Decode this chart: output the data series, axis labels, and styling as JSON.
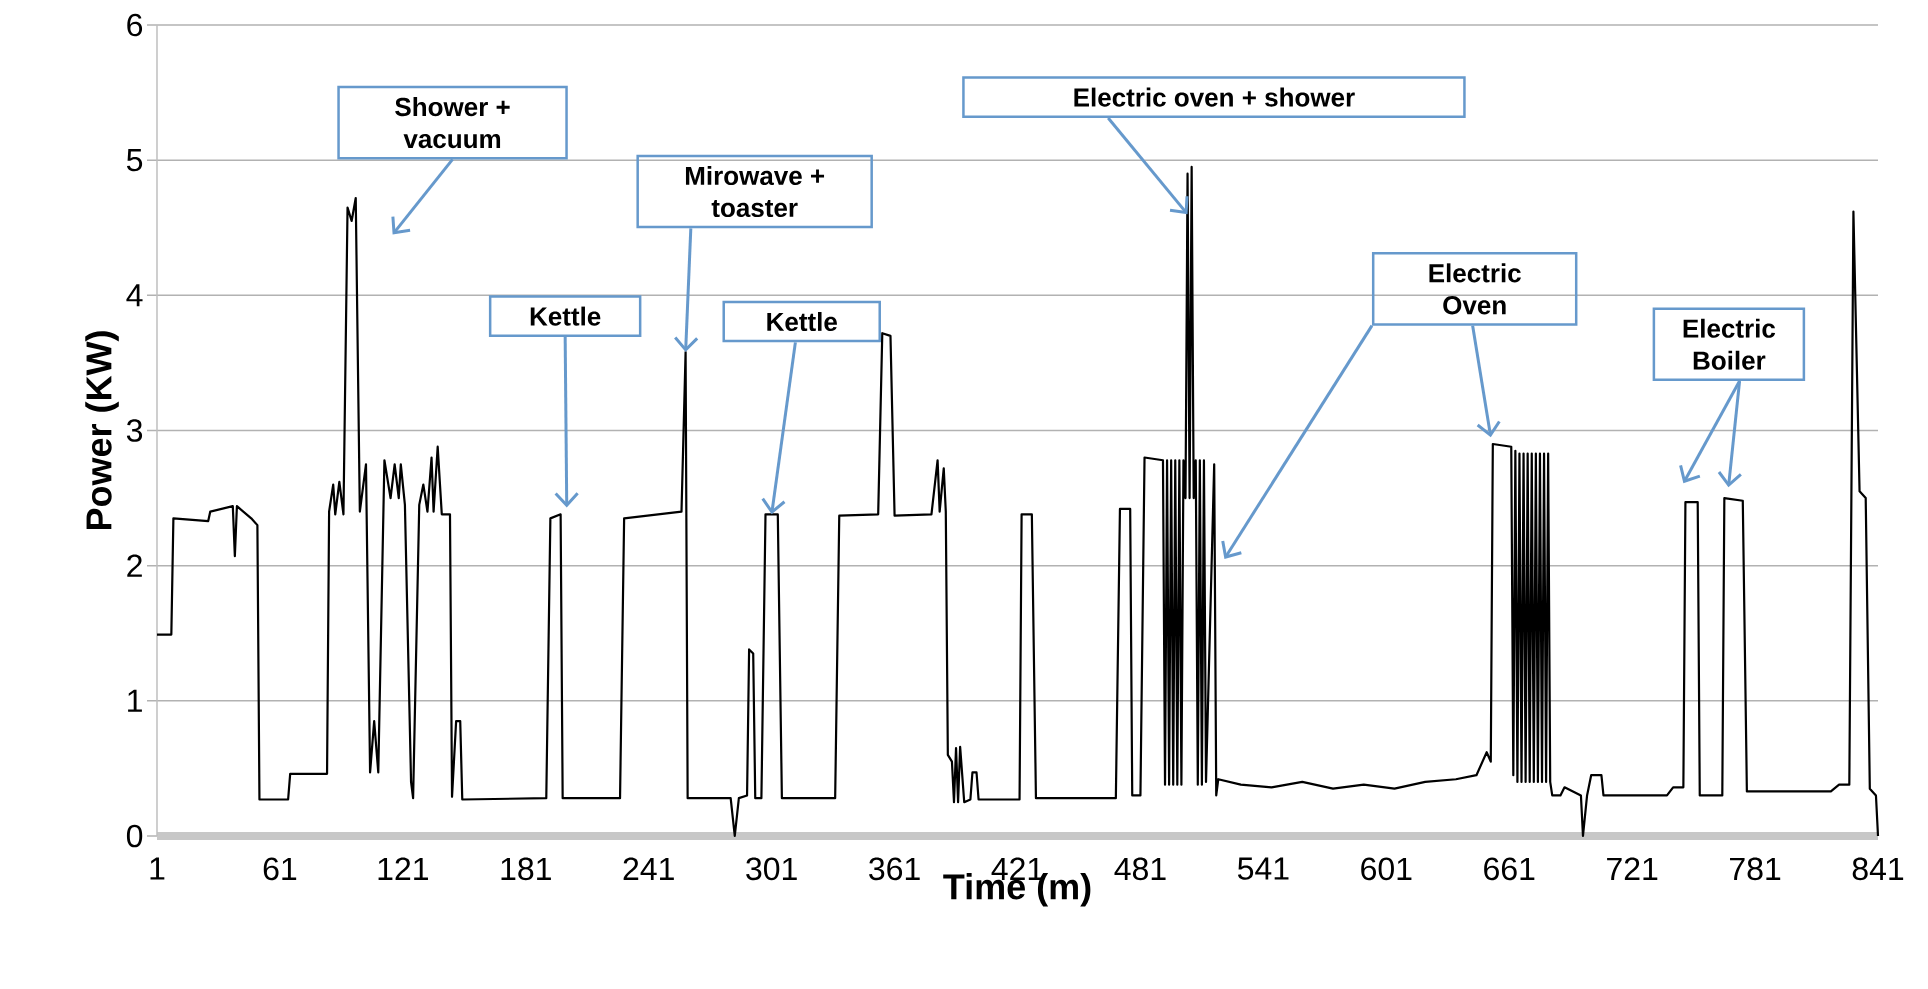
{
  "chart_data": {
    "type": "line",
    "xlabel": "Time (m)",
    "ylabel": "Power (KW)",
    "x": [
      1,
      8,
      9,
      26,
      27,
      38,
      39,
      40,
      47,
      50,
      51,
      65,
      66,
      84,
      85,
      87,
      88,
      90,
      92,
      94,
      96,
      98,
      100,
      103,
      105,
      107,
      109,
      112,
      115,
      117,
      119,
      120,
      122,
      125,
      126,
      129,
      131,
      133,
      135,
      136,
      138,
      140,
      144,
      145,
      147,
      149,
      150,
      191,
      193,
      198,
      199,
      227,
      229,
      257,
      259,
      260,
      281,
      283,
      285,
      289,
      290,
      292,
      293,
      296,
      298,
      304,
      306,
      332,
      334,
      353,
      355,
      359,
      361,
      379,
      382,
      383,
      385,
      386,
      387,
      389,
      390,
      391,
      392,
      393,
      395,
      398,
      399,
      401,
      402,
      422,
      423,
      428,
      430,
      469,
      471,
      476,
      477,
      481,
      483,
      492,
      493,
      494,
      495,
      496,
      497,
      498,
      499,
      500,
      501,
      502,
      503,
      504,
      505,
      506,
      507,
      508,
      509,
      510,
      511,
      512,
      513,
      517,
      518,
      519,
      530,
      545,
      560,
      575,
      590,
      605,
      620,
      635,
      645,
      650,
      652,
      653,
      662,
      663,
      664,
      665,
      666,
      667,
      668,
      669,
      670,
      671,
      672,
      673,
      674,
      675,
      676,
      677,
      678,
      679,
      680,
      681,
      682,
      686,
      688,
      696,
      697,
      699,
      701,
      706,
      707,
      738,
      741,
      746,
      747,
      753,
      754,
      765,
      766,
      775,
      777,
      818,
      822,
      827,
      829,
      832,
      835,
      837,
      840,
      841
    ],
    "series": [
      {
        "color": "#000000",
        "values": [
          1.49,
          1.49,
          2.35,
          2.33,
          2.4,
          2.44,
          2.07,
          2.44,
          2.35,
          2.3,
          0.27,
          0.27,
          0.46,
          0.46,
          2.4,
          2.6,
          2.38,
          2.62,
          2.38,
          4.65,
          4.55,
          4.72,
          2.4,
          2.75,
          0.47,
          0.85,
          0.47,
          2.78,
          2.5,
          2.75,
          2.5,
          2.75,
          2.45,
          0.4,
          0.28,
          2.45,
          2.6,
          2.4,
          2.8,
          2.4,
          2.88,
          2.38,
          2.38,
          0.29,
          0.85,
          0.85,
          0.27,
          0.28,
          2.35,
          2.38,
          0.28,
          0.28,
          2.35,
          2.4,
          3.58,
          0.28,
          0.28,
          0,
          0.28,
          0.3,
          1.38,
          1.35,
          0.28,
          0.28,
          2.38,
          2.38,
          0.28,
          0.28,
          2.37,
          2.38,
          3.72,
          3.7,
          2.37,
          2.38,
          2.78,
          2.4,
          2.72,
          2.4,
          0.6,
          0.55,
          0.25,
          0.65,
          0.25,
          0.66,
          0.25,
          0.27,
          0.47,
          0.47,
          0.27,
          0.27,
          2.38,
          2.38,
          0.28,
          0.28,
          2.42,
          2.42,
          0.3,
          0.3,
          2.8,
          2.78,
          0.38,
          2.78,
          0.38,
          2.78,
          0.38,
          2.78,
          0.38,
          2.78,
          0.38,
          2.78,
          2.5,
          4.9,
          2.5,
          4.95,
          2.5,
          2.78,
          0.38,
          2.78,
          0.38,
          2.78,
          0.4,
          2.75,
          0.3,
          0.42,
          0.38,
          0.36,
          0.4,
          0.35,
          0.38,
          0.35,
          0.4,
          0.42,
          0.45,
          0.62,
          0.55,
          2.9,
          2.88,
          0.45,
          2.85,
          0.4,
          2.83,
          0.4,
          2.83,
          0.4,
          2.83,
          0.4,
          2.83,
          0.4,
          2.83,
          0.4,
          2.83,
          0.4,
          2.83,
          0.4,
          2.83,
          0.4,
          0.3,
          0.3,
          0.36,
          0.3,
          0,
          0.3,
          0.45,
          0.45,
          0.3,
          0.3,
          0.36,
          0.36,
          2.47,
          2.47,
          0.3,
          0.3,
          2.5,
          2.48,
          0.33,
          0.33,
          0.38,
          0.38,
          4.62,
          2.55,
          2.5,
          0.35,
          0.3,
          0
        ]
      }
    ],
    "xlim": [
      1,
      841
    ],
    "ylim": [
      0,
      6
    ],
    "xticks": [
      1,
      61,
      121,
      181,
      241,
      301,
      361,
      421,
      481,
      541,
      601,
      661,
      721,
      781,
      841
    ],
    "yticks": [
      0,
      1,
      2,
      3,
      4,
      5,
      6
    ],
    "grid": "y",
    "annotations": [
      "Shower + vacuum",
      "Kettle",
      {
        "text": "Mirowave + toaster",
        "x": 259,
        "y": 3.58
      },
      {
        "text": "Kettle",
        "x": 301,
        "y": 2.38
      },
      {
        "text": "Electric oven + shower",
        "x": 504,
        "y": 4.6
      },
      "Electric Oven",
      "Electric Boiler"
    ]
  }
}
